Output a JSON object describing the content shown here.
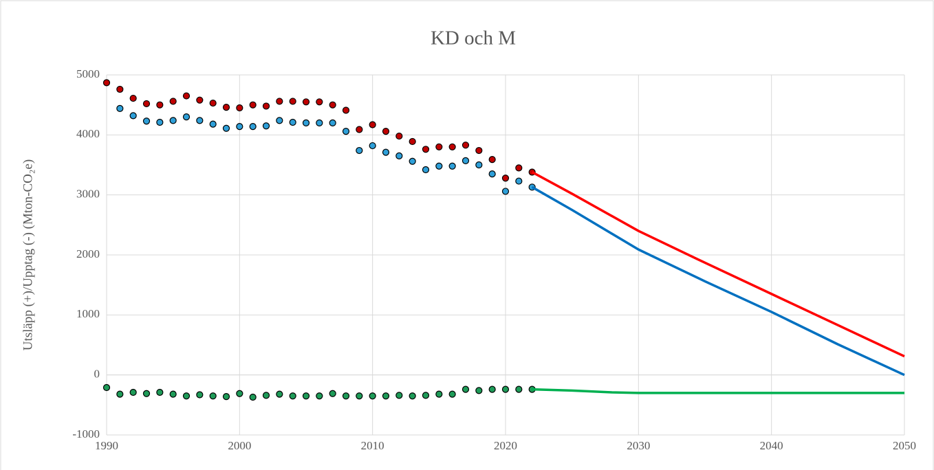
{
  "chart_data": {
    "type": "line",
    "title": "KD och M",
    "y_label": "Utsläpp (+)/Upptag (-) (Mton-CO₂e)",
    "xlim": [
      1990,
      2050
    ],
    "xticks": [
      1990,
      2000,
      2010,
      2020,
      2030,
      2040,
      2050
    ],
    "ylim": [
      -1000,
      5000
    ],
    "yticks": [
      -1000,
      0,
      1000,
      2000,
      3000,
      4000,
      5000
    ],
    "grid": true,
    "series": [
      {
        "type": "scatter",
        "color": "#c00000",
        "x": [
          1990,
          1991,
          1992,
          1993,
          1994,
          1995,
          1996,
          1997,
          1998,
          1999,
          2000,
          2001,
          2002,
          2003,
          2004,
          2005,
          2006,
          2007,
          2008,
          2009,
          2010,
          2011,
          2012,
          2013,
          2014,
          2015,
          2016,
          2017,
          2018,
          2019,
          2020,
          2021,
          2022
        ],
        "values": [
          4870,
          4760,
          4610,
          4520,
          4500,
          4560,
          4650,
          4580,
          4530,
          4460,
          4450,
          4500,
          4480,
          4560,
          4560,
          4550,
          4550,
          4500,
          4410,
          4090,
          4170,
          4060,
          3980,
          3890,
          3760,
          3800,
          3800,
          3830,
          3740,
          3590,
          3280,
          3450,
          3380
        ]
      },
      {
        "type": "scatter",
        "color": "#2e9fd8",
        "x": [
          1990,
          1991,
          1992,
          1993,
          1994,
          1995,
          1996,
          1997,
          1998,
          1999,
          2000,
          2001,
          2002,
          2003,
          2004,
          2005,
          2006,
          2007,
          2008,
          2009,
          2010,
          2011,
          2012,
          2013,
          2014,
          2015,
          2016,
          2017,
          2018,
          2019,
          2020,
          2021,
          2022
        ],
        "values": [
          null,
          4440,
          4320,
          4230,
          4210,
          4240,
          4300,
          4240,
          4180,
          4110,
          4140,
          4140,
          4150,
          4240,
          4210,
          4200,
          4200,
          4200,
          4060,
          3740,
          3820,
          3710,
          3650,
          3560,
          3420,
          3480,
          3480,
          3570,
          3500,
          3350,
          3060,
          3230,
          3130
        ]
      },
      {
        "type": "scatter",
        "color": "#1e9b58",
        "x": [
          1990,
          1991,
          1992,
          1993,
          1994,
          1995,
          1996,
          1997,
          1998,
          1999,
          2000,
          2001,
          2002,
          2003,
          2004,
          2005,
          2006,
          2007,
          2008,
          2009,
          2010,
          2011,
          2012,
          2013,
          2014,
          2015,
          2016,
          2017,
          2018,
          2019,
          2020,
          2021,
          2022
        ],
        "values": [
          -210,
          -320,
          -290,
          -310,
          -290,
          -320,
          -350,
          -330,
          -350,
          -360,
          -310,
          -370,
          -340,
          -320,
          -350,
          -350,
          -350,
          -310,
          -350,
          -350,
          -350,
          -350,
          -340,
          -350,
          -340,
          -320,
          -320,
          -240,
          -260,
          -240,
          -240,
          -240,
          -240
        ]
      },
      {
        "type": "line",
        "color": "#ff0000",
        "x": [
          2022,
          2025,
          2030,
          2035,
          2040,
          2045,
          2050
        ],
        "values": [
          3380,
          3020,
          2400,
          1870,
          1350,
          830,
          310
        ]
      },
      {
        "type": "line",
        "color": "#0070c0",
        "x": [
          2022,
          2025,
          2030,
          2035,
          2040,
          2045,
          2050
        ],
        "values": [
          3130,
          2750,
          2090,
          1560,
          1050,
          510,
          0
        ]
      },
      {
        "type": "line",
        "color": "#00b050",
        "x": [
          2022,
          2025,
          2028,
          2030,
          2050
        ],
        "values": [
          -240,
          -260,
          -290,
          -300,
          -300
        ]
      }
    ]
  }
}
